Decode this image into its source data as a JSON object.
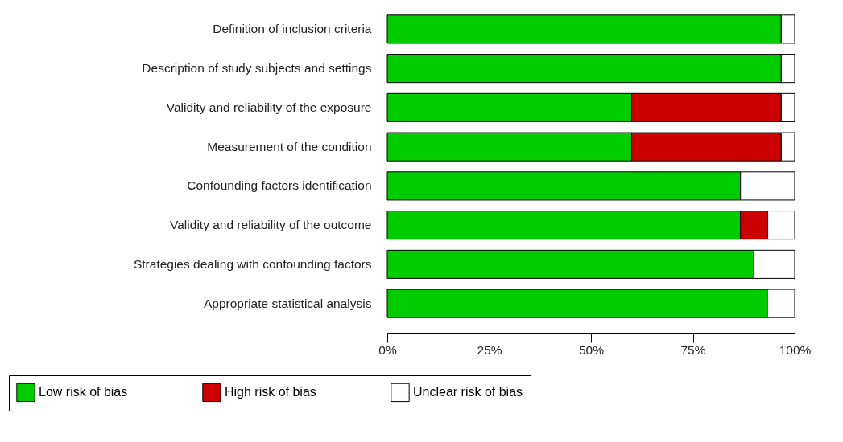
{
  "chart_data": {
    "type": "bar",
    "orientation": "horizontal",
    "stacked": true,
    "legend": "bottom",
    "grid": false,
    "categories": [
      "Definition of inclusion criteria",
      "Description of study subjects and settings",
      "Validity and reliability of the exposure",
      "Measurement of the condition",
      "Confounding factors identification",
      "Validity and reliability of the outcome",
      "Strategies dealing with confounding factors",
      "Appropriate statistical analysis"
    ],
    "series": [
      {
        "name": "Low risk of bias",
        "color": "#00cc00",
        "values": [
          96.7,
          96.7,
          60,
          60,
          86.7,
          86.7,
          90,
          93.3
        ]
      },
      {
        "name": "High risk of bias",
        "color": "#cc0000",
        "values": [
          0,
          0,
          36.7,
          36.7,
          0,
          6.7,
          0,
          0
        ]
      },
      {
        "name": "Unclear risk of bias",
        "color": "#ffffff",
        "values": [
          3.3,
          3.3,
          3.3,
          3.3,
          13.3,
          6.6,
          10,
          6.7
        ]
      }
    ],
    "xlim": [
      0,
      100
    ],
    "xticks": [
      {
        "value": 0,
        "label": "0%"
      },
      {
        "value": 25,
        "label": "25%"
      },
      {
        "value": 50,
        "label": "50%"
      },
      {
        "value": 75,
        "label": "75%"
      },
      {
        "value": 100,
        "label": "100%"
      }
    ]
  }
}
